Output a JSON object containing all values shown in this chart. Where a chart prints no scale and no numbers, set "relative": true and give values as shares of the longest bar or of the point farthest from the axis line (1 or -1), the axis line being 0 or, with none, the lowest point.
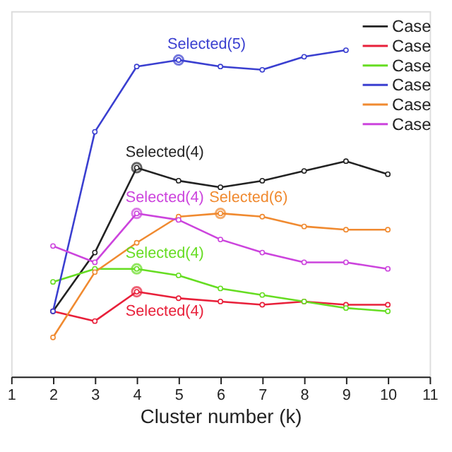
{
  "chart_data": {
    "type": "line",
    "relative": true,
    "xlabel": "Cluster number (k)",
    "x": [
      2,
      3,
      4,
      5,
      6,
      7,
      8,
      9,
      10
    ],
    "xlim": [
      1,
      11
    ],
    "xticks": [
      1,
      2,
      3,
      4,
      5,
      6,
      7,
      8,
      9,
      10,
      11
    ],
    "series": [
      {
        "name": "Case",
        "color": "#222222",
        "values": [
          0.2,
          0.38,
          0.64,
          0.6,
          0.58,
          0.6,
          0.63,
          0.66,
          0.62
        ]
      },
      {
        "name": "Case",
        "color": "#e8203a",
        "values": [
          0.2,
          0.17,
          0.26,
          0.24,
          0.23,
          0.22,
          0.23,
          0.22,
          0.22
        ]
      },
      {
        "name": "Case",
        "color": "#66dd22",
        "values": [
          0.29,
          0.33,
          0.33,
          0.31,
          0.27,
          0.25,
          0.23,
          0.21,
          0.2
        ]
      },
      {
        "name": "Case",
        "color": "#3a3fd0",
        "values": [
          0.2,
          0.75,
          0.95,
          0.97,
          0.95,
          0.94,
          0.98,
          1.0,
          null
        ]
      },
      {
        "name": "Case",
        "color": "#f08a30",
        "values": [
          0.12,
          0.32,
          0.41,
          0.49,
          0.5,
          0.49,
          0.46,
          0.45,
          0.45
        ]
      },
      {
        "name": "Case",
        "color": "#cc44dd",
        "values": [
          0.4,
          0.35,
          0.5,
          0.48,
          0.42,
          0.38,
          0.35,
          0.35,
          0.33
        ]
      }
    ],
    "annotations": [
      {
        "text": "Selected(5)",
        "x": 5,
        "y": 0.97
      },
      {
        "text": "Selected(4)",
        "x": 4,
        "y": 0.64
      },
      {
        "text": "Selected(4)",
        "x": 4,
        "y": 0.5
      },
      {
        "text": "Selected(6)",
        "x": 6,
        "y": 0.5
      },
      {
        "text": "Selected(4)",
        "x": 4,
        "y": 0.33
      },
      {
        "text": "Selected(4)",
        "x": 4,
        "y": 0.26
      }
    ],
    "marker": "circle",
    "line_style": "solid",
    "grid": false,
    "legend": "top right"
  }
}
